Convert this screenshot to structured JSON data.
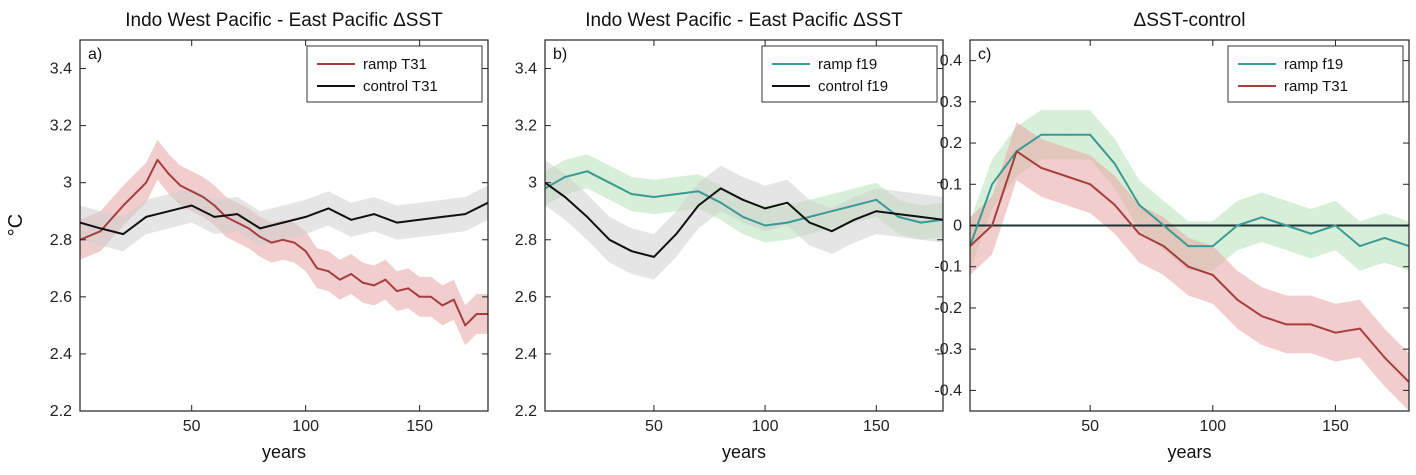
{
  "figure": {
    "ylabel_main": "°C"
  },
  "chart_data": [
    {
      "type": "line",
      "panel_label": "a)",
      "title": "Indo West Pacific - East Pacific ΔSST",
      "xlabel": "years",
      "xlim": [
        1,
        180
      ],
      "ylim": [
        2.2,
        3.5
      ],
      "xticks": [
        "50",
        "100",
        "150"
      ],
      "yticks": [
        "2.2",
        "2.4",
        "2.6",
        "2.8",
        "3",
        "3.2",
        "3.4"
      ],
      "grid": false,
      "legend_position": "top-right",
      "zero_line": false,
      "series": [
        {
          "name": "ramp T31",
          "color": "#a63e3e",
          "band_color": "#e8a4a4",
          "band": 0.07,
          "x": [
            1,
            10,
            20,
            30,
            35,
            40,
            45,
            50,
            55,
            60,
            65,
            70,
            75,
            80,
            85,
            90,
            95,
            100,
            105,
            110,
            115,
            120,
            125,
            130,
            135,
            140,
            145,
            150,
            155,
            160,
            165,
            170,
            175,
            180
          ],
          "values": [
            2.8,
            2.83,
            2.92,
            3.0,
            3.08,
            3.03,
            2.99,
            2.97,
            2.95,
            2.92,
            2.88,
            2.86,
            2.84,
            2.81,
            2.79,
            2.8,
            2.79,
            2.76,
            2.7,
            2.69,
            2.66,
            2.68,
            2.65,
            2.64,
            2.66,
            2.62,
            2.63,
            2.6,
            2.6,
            2.57,
            2.59,
            2.5,
            2.54,
            2.54
          ]
        },
        {
          "name": "control T31",
          "color": "#111111",
          "band_color": "#cfcfcf",
          "band": 0.06,
          "x": [
            1,
            10,
            20,
            30,
            40,
            50,
            60,
            70,
            80,
            90,
            100,
            110,
            120,
            130,
            140,
            150,
            160,
            170,
            180
          ],
          "values": [
            2.86,
            2.84,
            2.82,
            2.88,
            2.9,
            2.92,
            2.88,
            2.89,
            2.84,
            2.86,
            2.88,
            2.91,
            2.87,
            2.89,
            2.86,
            2.87,
            2.88,
            2.89,
            2.93
          ]
        }
      ]
    },
    {
      "type": "line",
      "panel_label": "b)",
      "title": "Indo West Pacific - East Pacific ΔSST",
      "xlabel": "years",
      "xlim": [
        1,
        180
      ],
      "ylim": [
        2.2,
        3.5
      ],
      "xticks": [
        "50",
        "100",
        "150"
      ],
      "yticks": [
        "2.2",
        "2.4",
        "2.6",
        "2.8",
        "3",
        "3.2",
        "3.4"
      ],
      "grid": false,
      "legend_position": "top-right",
      "zero_line": false,
      "series": [
        {
          "name": "ramp f19",
          "color": "#3b9a96",
          "band_color": "#b6e2b8",
          "band": 0.06,
          "x": [
            1,
            10,
            20,
            30,
            40,
            50,
            60,
            70,
            80,
            90,
            100,
            110,
            120,
            130,
            140,
            150,
            160,
            170,
            180
          ],
          "values": [
            2.98,
            3.02,
            3.04,
            3.0,
            2.96,
            2.95,
            2.96,
            2.97,
            2.93,
            2.88,
            2.85,
            2.86,
            2.88,
            2.9,
            2.92,
            2.94,
            2.88,
            2.86,
            2.87
          ]
        },
        {
          "name": "control f19",
          "color": "#111111",
          "band_color": "#cfcfcf",
          "band": 0.08,
          "x": [
            1,
            10,
            20,
            30,
            40,
            50,
            60,
            70,
            80,
            90,
            100,
            110,
            120,
            130,
            140,
            150,
            160,
            170,
            180
          ],
          "values": [
            3.0,
            2.95,
            2.88,
            2.8,
            2.76,
            2.74,
            2.82,
            2.92,
            2.98,
            2.94,
            2.91,
            2.93,
            2.86,
            2.83,
            2.87,
            2.9,
            2.89,
            2.88,
            2.87
          ]
        }
      ]
    },
    {
      "type": "line",
      "panel_label": "c)",
      "title": "ΔSST-control",
      "xlabel": "years",
      "xlim": [
        1,
        180
      ],
      "ylim": [
        -0.45,
        0.45
      ],
      "xticks": [
        "50",
        "100",
        "150"
      ],
      "yticks": [
        "-0.4",
        "-0.3",
        "-0.2",
        "-0.1",
        "0",
        "0.1",
        "0.2",
        "0.3",
        "0.4"
      ],
      "ytick_values": [
        -0.4,
        -0.3,
        -0.2,
        -0.1,
        0,
        0.1,
        0.2,
        0.3,
        0.4
      ],
      "grid": false,
      "legend_position": "top-right",
      "zero_line": true,
      "series": [
        {
          "name": "ramp f19",
          "color": "#3b9a96",
          "band_color": "#b6e2b8",
          "band": 0.06,
          "x": [
            1,
            10,
            20,
            30,
            40,
            50,
            60,
            70,
            80,
            90,
            100,
            110,
            120,
            130,
            140,
            150,
            160,
            170,
            180
          ],
          "values": [
            -0.05,
            0.1,
            0.18,
            0.22,
            0.22,
            0.22,
            0.15,
            0.05,
            0.0,
            -0.05,
            -0.05,
            0.0,
            0.02,
            0.0,
            -0.02,
            0.0,
            -0.05,
            -0.03,
            -0.05
          ]
        },
        {
          "name": "ramp T31",
          "color": "#a63e3e",
          "band_color": "#e8a4a4",
          "band": 0.07,
          "x": [
            1,
            10,
            20,
            30,
            40,
            50,
            60,
            70,
            80,
            90,
            100,
            110,
            120,
            130,
            140,
            150,
            160,
            170,
            180
          ],
          "values": [
            -0.05,
            0.0,
            0.18,
            0.14,
            0.12,
            0.1,
            0.05,
            -0.02,
            -0.05,
            -0.1,
            -0.12,
            -0.18,
            -0.22,
            -0.24,
            -0.24,
            -0.26,
            -0.25,
            -0.32,
            -0.38
          ]
        }
      ]
    }
  ]
}
